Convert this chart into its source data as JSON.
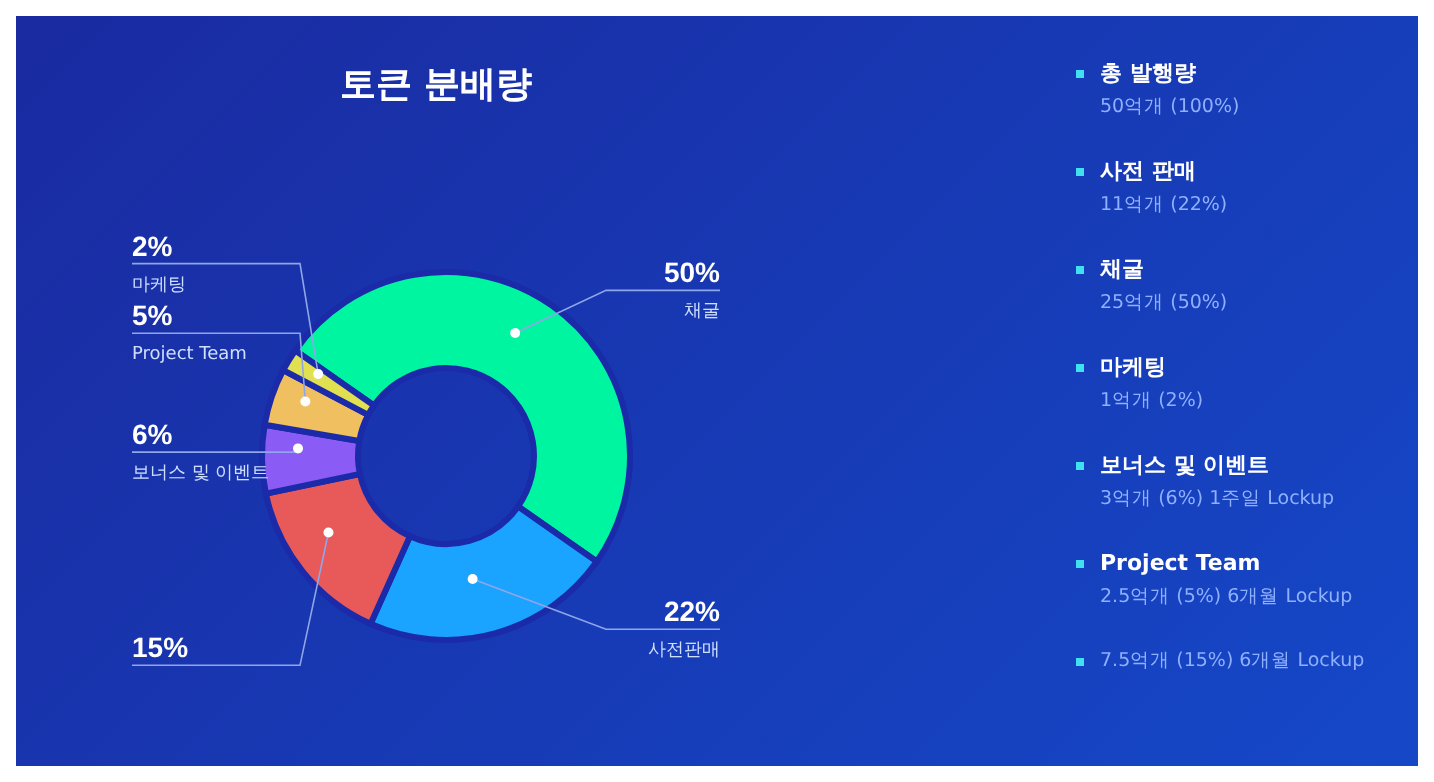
{
  "chart_data": {
    "type": "donut",
    "title": "토큰 분배량",
    "categories": [
      "채굴",
      "사전판매",
      null,
      "보너스 및 이벤트",
      "Project Team",
      "마케팅"
    ],
    "values": [
      50,
      22,
      15,
      6,
      5,
      2
    ],
    "colors": [
      "#00f5a0",
      "#1aa3ff",
      "#e85a5a",
      "#8a5cf5",
      "#f0c060",
      "#e0e050"
    ],
    "value_labels": [
      "50%",
      "22%",
      "15%",
      "6%",
      "5%",
      "2%"
    ],
    "annotations": [
      "총 발행량",
      "50억개 (100%)",
      "사전 판매",
      "11억개 (22%)",
      "채굴",
      "25억개 (50%)",
      "마케팅",
      "1억개 (2%)",
      "보너스 및 이벤트",
      "3억개 (6%) 1주일 Lockup",
      "Project Team",
      "2.5억개 (5%) 6개월 Lockup",
      "7.5억개 (15%) 6개월 Lockup"
    ]
  }
}
